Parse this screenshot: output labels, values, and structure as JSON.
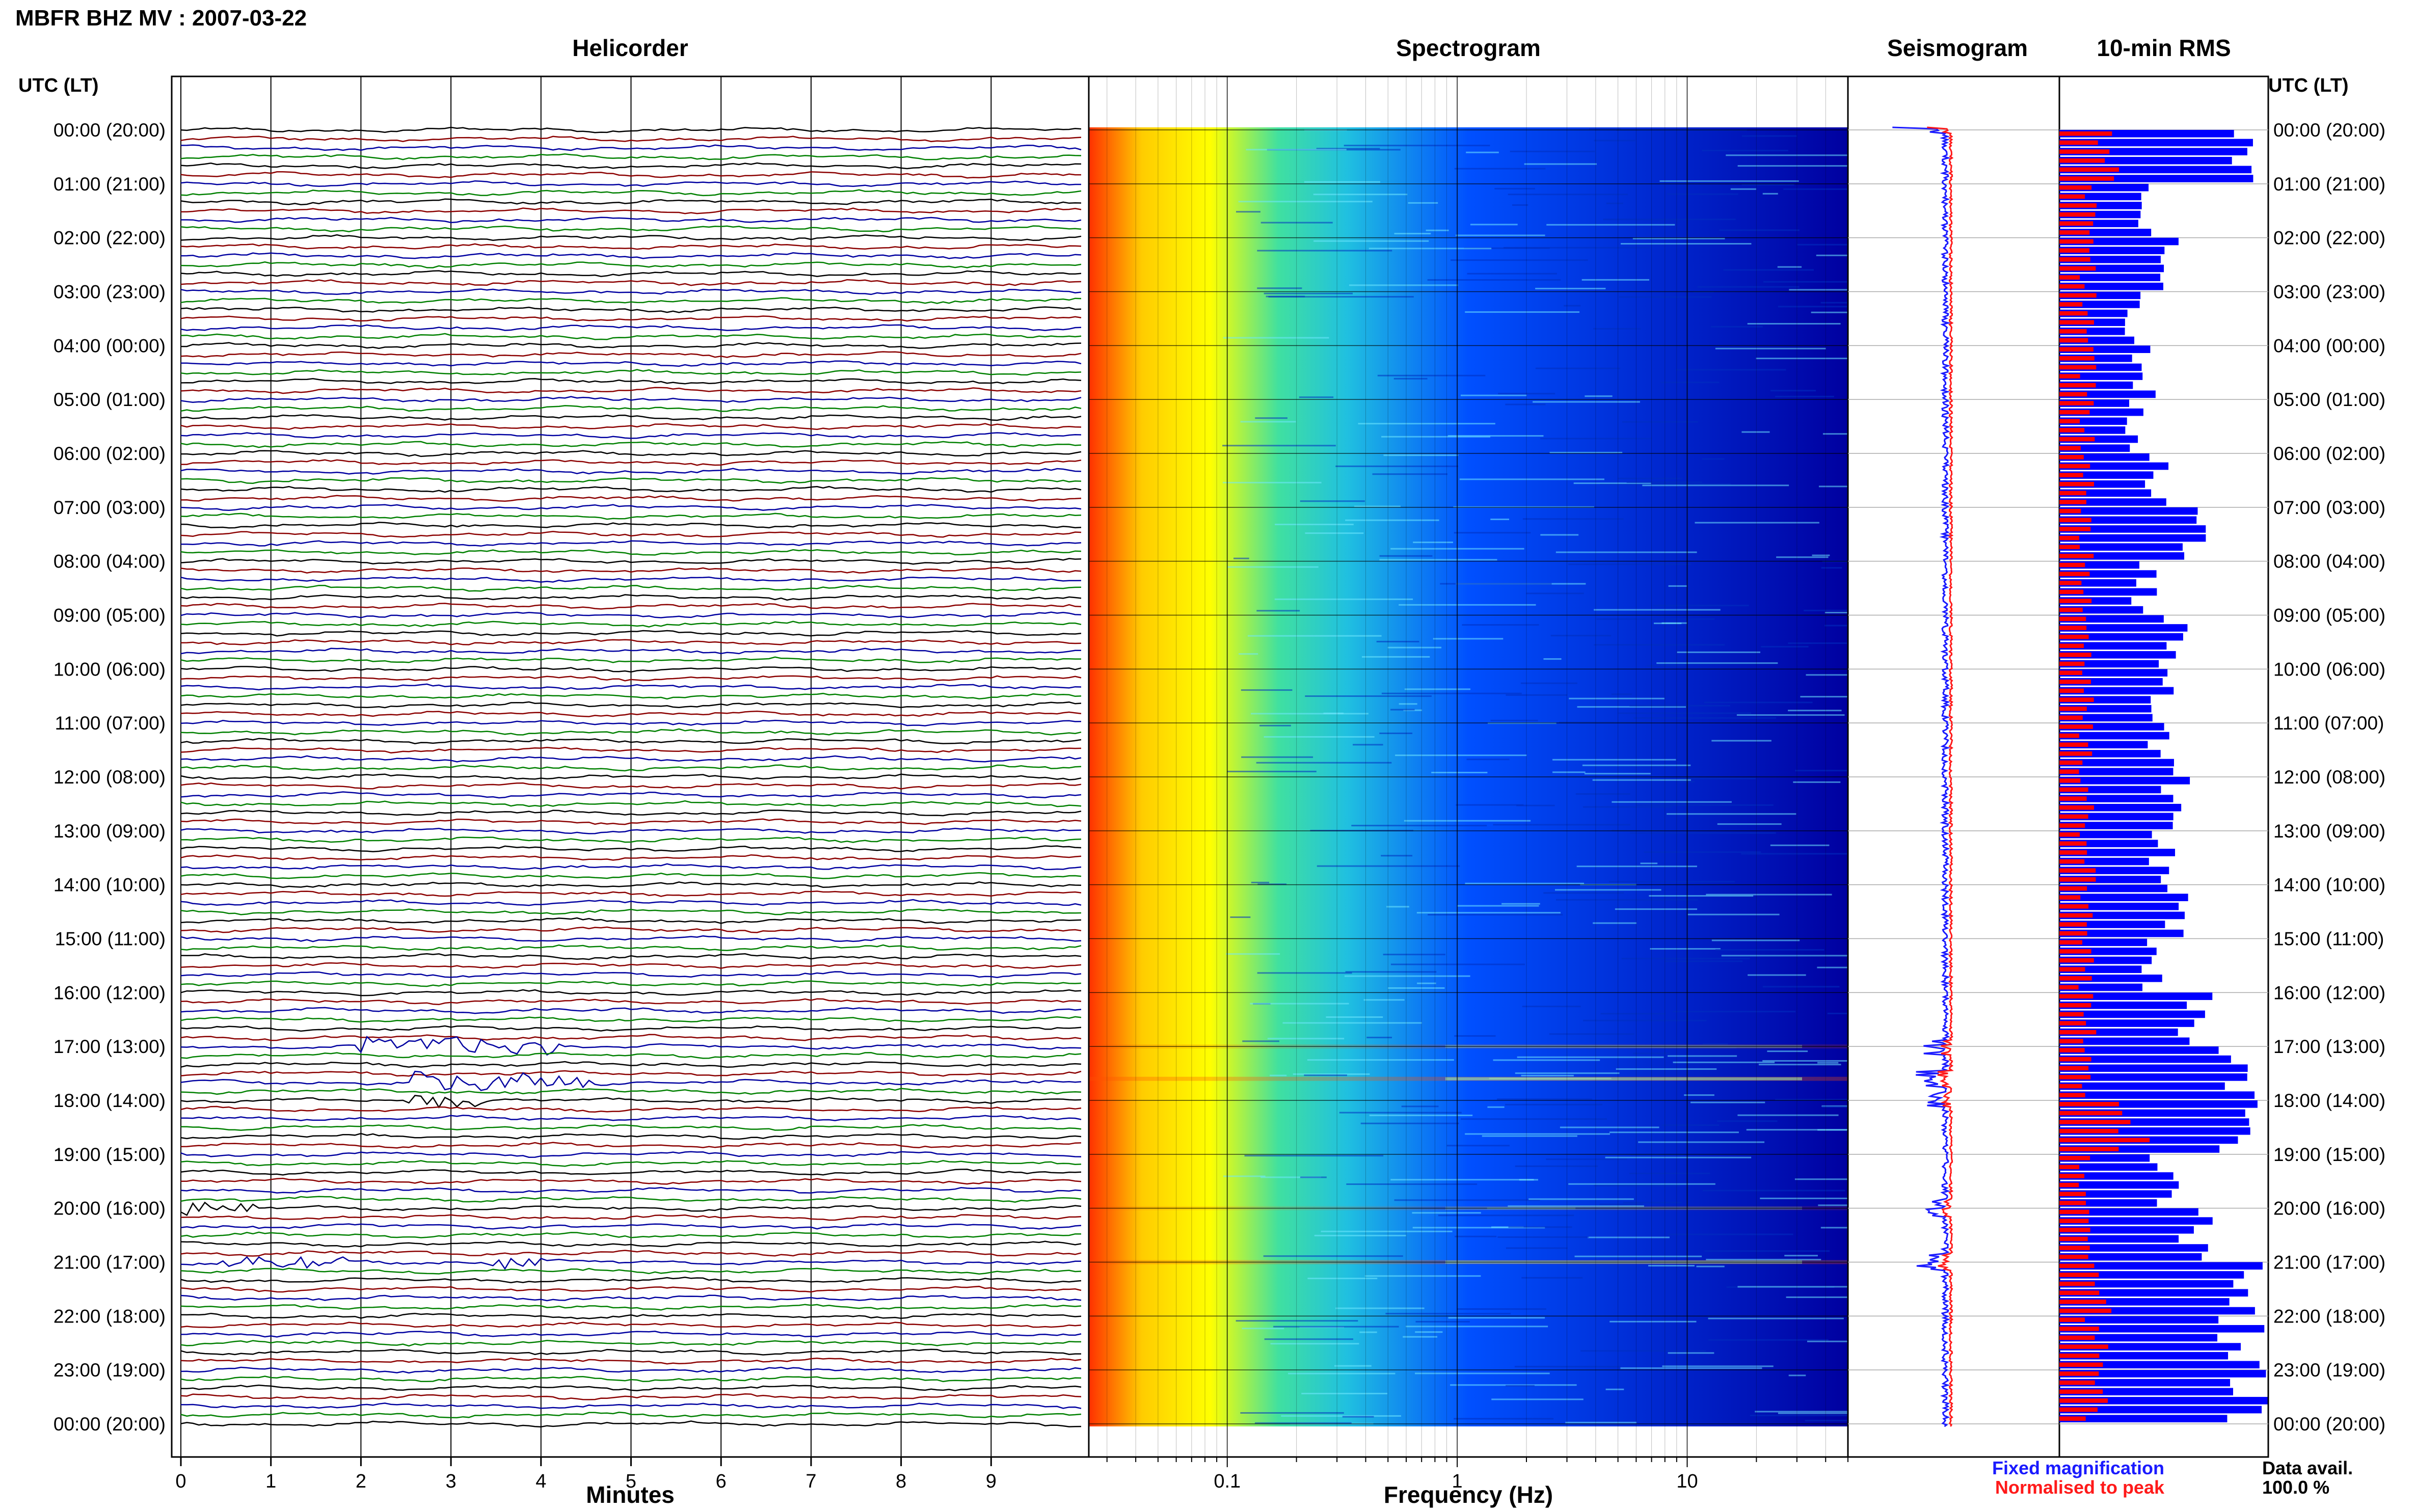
{
  "header": {
    "station_title": "MBFR BHZ MV : 2007-03-22",
    "utc_lt_label": "UTC (LT)"
  },
  "panels": {
    "helicorder": {
      "title": "Helicorder",
      "xlabel": "Minutes"
    },
    "spectrogram": {
      "title": "Spectrogram",
      "xlabel": "Frequency (Hz)"
    },
    "seismogram": {
      "title": "Seismogram"
    },
    "rms": {
      "title": "10-min RMS"
    }
  },
  "legend": {
    "fixed": {
      "label": "Fixed magnification",
      "color": "#1a1aff"
    },
    "normalised": {
      "label": "Normalised to peak",
      "color": "#ff1a1a"
    }
  },
  "data_availability": {
    "label": "Data avail.",
    "value": "100.0 %"
  },
  "chart_data": [
    {
      "type": "line",
      "panel": "helicorder",
      "title": "Helicorder",
      "xlabel": "Minutes",
      "x_ticks": [
        "0",
        "1",
        "2",
        "3",
        "4",
        "5",
        "6",
        "7",
        "8",
        "9"
      ],
      "xlim": [
        0,
        10
      ],
      "rows_per_hour": 6,
      "trace_colors": [
        "#000000",
        "#8b0000",
        "#0000a0",
        "#008000"
      ],
      "y_tick_labels": [
        "00:00 (20:00)",
        "01:00 (21:00)",
        "02:00 (22:00)",
        "03:00 (23:00)",
        "04:00 (00:00)",
        "05:00 (01:00)",
        "06:00 (02:00)",
        "07:00 (03:00)",
        "08:00 (04:00)",
        "09:00 (05:00)",
        "10:00 (06:00)",
        "11:00 (07:00)",
        "12:00 (08:00)",
        "13:00 (09:00)",
        "14:00 (10:00)",
        "15:00 (11:00)",
        "16:00 (12:00)",
        "17:00 (13:00)",
        "18:00 (14:00)",
        "19:00 (15:00)",
        "20:00 (16:00)",
        "21:00 (17:00)",
        "22:00 (18:00)",
        "23:00 (19:00)",
        "00:00 (20:00)"
      ],
      "events": [
        {
          "hour": 17.0,
          "start_min": 2.0,
          "end_min": 4.2,
          "strength": 0.8
        },
        {
          "hour": 17.6,
          "start_min": 2.6,
          "end_min": 4.6,
          "strength": 1.0
        },
        {
          "hour": 18.0,
          "start_min": 2.5,
          "end_min": 3.4,
          "strength": 0.6
        },
        {
          "hour": 20.0,
          "start_min": 0.0,
          "end_min": 0.8,
          "strength": 0.7
        },
        {
          "hour": 21.0,
          "start_min": 0.4,
          "end_min": 1.8,
          "strength": 0.6
        },
        {
          "hour": 21.0,
          "start_min": 3.3,
          "end_min": 4.0,
          "strength": 0.6
        }
      ]
    },
    {
      "type": "heatmap",
      "panel": "spectrogram",
      "title": "Spectrogram",
      "xlabel": "Frequency (Hz)",
      "x_scale": "log",
      "xlim": [
        0.025,
        50
      ],
      "x_tick_labels": [
        "0.1",
        "1",
        "10"
      ],
      "x_tick_values": [
        0.1,
        1,
        10
      ],
      "colormap": [
        "#ff3000",
        "#ffcc00",
        "#ffff00",
        "#40e0a0",
        "#20c0e0",
        "#0050ff",
        "#0000a0"
      ]
    },
    {
      "type": "line",
      "panel": "seismogram",
      "title": "Seismogram",
      "series": [
        {
          "name": "Fixed magnification",
          "color": "#1a1aff"
        },
        {
          "name": "Normalised to peak",
          "color": "#ff1a1a"
        }
      ]
    },
    {
      "type": "bar",
      "panel": "rms",
      "title": "10-min RMS",
      "orientation": "horizontal",
      "hourly_rms_fixed": [
        1.0,
        0.45,
        0.55,
        0.4,
        0.45,
        0.4,
        0.5,
        0.75,
        0.45,
        0.6,
        0.55,
        0.55,
        0.6,
        0.55,
        0.6,
        0.5,
        0.7,
        0.95,
        1.0,
        0.55,
        0.75,
        1.0,
        0.95,
        0.95,
        0.95
      ],
      "hourly_rms_normalised": [
        0.25,
        0.2,
        0.15,
        0.15,
        0.15,
        0.15,
        0.15,
        0.15,
        0.15,
        0.15,
        0.15,
        0.15,
        0.15,
        0.15,
        0.15,
        0.15,
        0.15,
        0.15,
        0.45,
        0.15,
        0.15,
        0.25,
        0.2,
        0.2,
        0.2
      ]
    }
  ]
}
